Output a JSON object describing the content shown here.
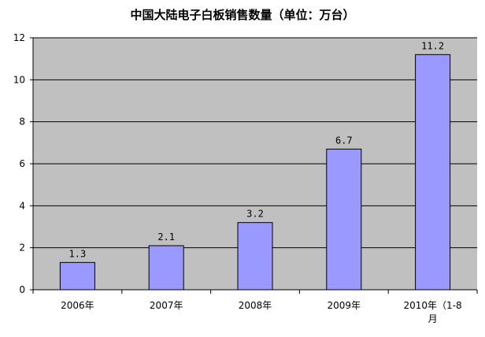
{
  "chart_data": {
    "type": "bar",
    "title": "中国大陆电子白板销售数量（单位：万台）",
    "xlabel": "",
    "ylabel": "",
    "categories": [
      "2006年",
      "2007年",
      "2008年",
      "2009年",
      "2010年（1-8月"
    ],
    "category_lines": [
      [
        "2006年"
      ],
      [
        "2007年"
      ],
      [
        "2008年"
      ],
      [
        "2009年"
      ],
      [
        "2010年（1-8",
        "月"
      ]
    ],
    "values": [
      1.3,
      2.1,
      3.2,
      6.7,
      11.2
    ],
    "data_labels": [
      "1.3",
      "2.1",
      "3.2",
      "6.7",
      "11.2"
    ],
    "ylim": [
      0,
      12
    ],
    "yticks": [
      0,
      2,
      4,
      6,
      8,
      10,
      12
    ],
    "grid": true,
    "legend": "none",
    "colors": {
      "plot_background": "#c0c0c0",
      "bar_fill": "#9999ff",
      "bar_stroke": "#000000",
      "grid": "#000000"
    }
  }
}
